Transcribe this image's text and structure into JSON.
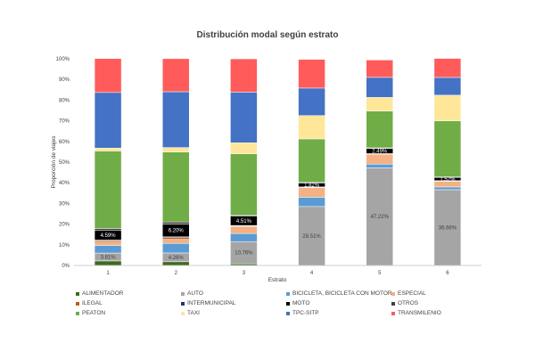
{
  "chart_data": {
    "type": "bar",
    "stacked": true,
    "title": "Distribución modal según estrato",
    "xlabel": "Estrato",
    "ylabel": "Proporción de viajes",
    "categories": [
      "1",
      "2",
      "3",
      "4",
      "5",
      "6"
    ],
    "ylim": [
      0,
      100
    ],
    "y_ticks": [
      "0%",
      "10%",
      "20%",
      "30%",
      "40%",
      "50%",
      "60%",
      "70%",
      "80%",
      "90%",
      "100%"
    ],
    "grid": false,
    "legend_position": "bottom",
    "series": [
      {
        "name": "ALIMENTADOR",
        "color": "#3d6b1f",
        "values": [
          2.2,
          1.8,
          0.8,
          0,
          0,
          0
        ]
      },
      {
        "name": "AUTO",
        "color": "#a5a5a5",
        "values": [
          3.81,
          4.26,
          10.76,
          28.51,
          47.22,
          36.66
        ]
      },
      {
        "name": "BICICLETA, BICICLETA CON MOTOR",
        "color": "#5b9bd5",
        "values": [
          3.7,
          4.6,
          3.9,
          4.5,
          1.8,
          1.3
        ]
      },
      {
        "name": "ESPECIAL",
        "color": "#f4b183",
        "values": [
          1.6,
          2.0,
          3.5,
          4.7,
          4.8,
          2.8
        ]
      },
      {
        "name": "ILEGAL",
        "color": "#c55a11",
        "values": [
          0.7,
          0.8,
          0.2,
          0.2,
          0.2,
          0.2
        ]
      },
      {
        "name": "INTERMUNICIPAL",
        "color": "#203864",
        "values": [
          0.3,
          0.4,
          0.2,
          0.1,
          0.1,
          0.1
        ]
      },
      {
        "name": "MOTO",
        "color": "#000000",
        "values": [
          4.59,
          6.2,
          4.51,
          1.82,
          2.49,
          1.52
        ]
      },
      {
        "name": "OTROS",
        "color": "#404040",
        "values": [
          1.0,
          1.0,
          0.5,
          0.5,
          0.3,
          0.3
        ]
      },
      {
        "name": "PEATON",
        "color": "#70ad47",
        "values": [
          37.5,
          33.8,
          29.7,
          20.9,
          17.8,
          27.1
        ]
      },
      {
        "name": "TAXI",
        "color": "#ffe699",
        "values": [
          1.4,
          2.2,
          5.3,
          11.3,
          6.6,
          12.4
        ]
      },
      {
        "name": "TPC-SITP",
        "color": "#4472c4",
        "values": [
          26.9,
          27.0,
          24.5,
          13.3,
          9.7,
          8.6
        ]
      },
      {
        "name": "TRANSMILENIO",
        "color": "#ff5b5b",
        "values": [
          16.4,
          16.0,
          16.1,
          13.9,
          8.4,
          9.2
        ]
      }
    ],
    "data_labels": [
      {
        "series": "AUTO",
        "category": "1",
        "text": "3.81%"
      },
      {
        "series": "AUTO",
        "category": "2",
        "text": "4.26%"
      },
      {
        "series": "AUTO",
        "category": "3",
        "text": "10.76%"
      },
      {
        "series": "AUTO",
        "category": "4",
        "text": "28.51%"
      },
      {
        "series": "AUTO",
        "category": "5",
        "text": "47.22%"
      },
      {
        "series": "AUTO",
        "category": "6",
        "text": "36.66%"
      },
      {
        "series": "MOTO",
        "category": "1",
        "text": "4.59%"
      },
      {
        "series": "MOTO",
        "category": "2",
        "text": "6.20%"
      },
      {
        "series": "MOTO",
        "category": "3",
        "text": "4.51%"
      },
      {
        "series": "MOTO",
        "category": "4",
        "text": "1.82%"
      },
      {
        "series": "MOTO",
        "category": "5",
        "text": "2.49%"
      },
      {
        "series": "MOTO",
        "category": "6",
        "text": "1.52%"
      }
    ]
  }
}
